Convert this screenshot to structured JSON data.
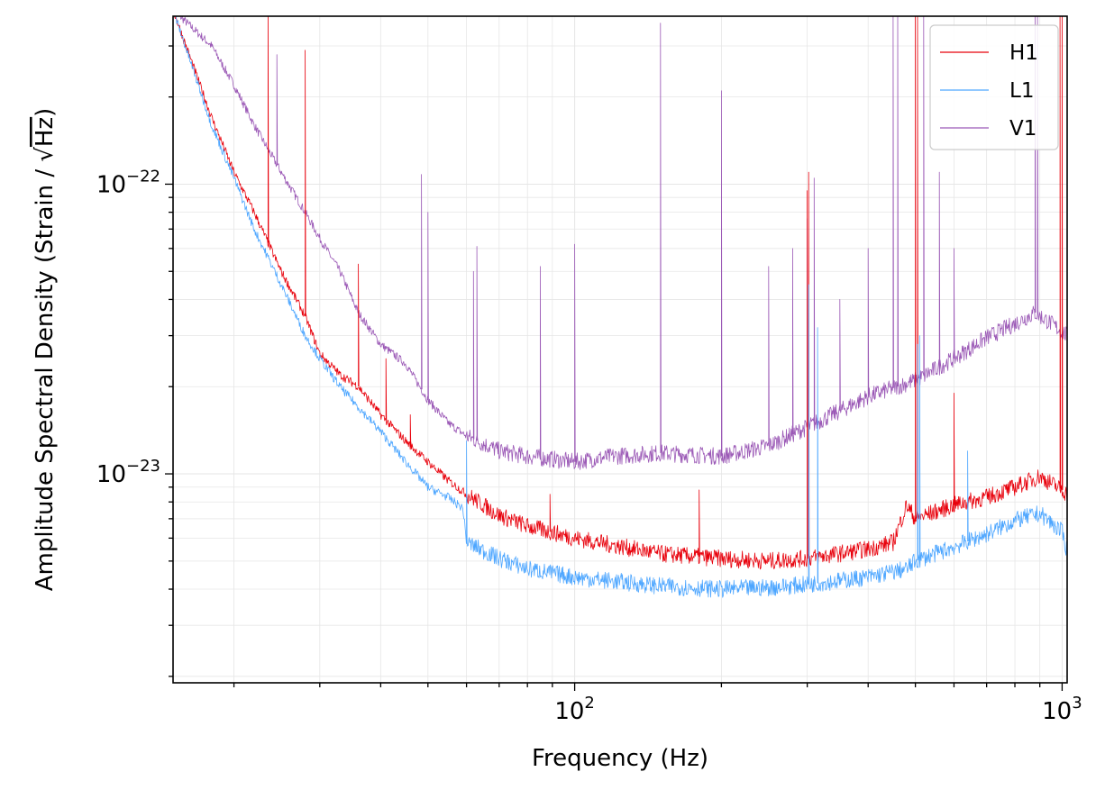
{
  "chart_data": {
    "type": "line",
    "title": "",
    "xlabel": "Frequency (Hz)",
    "ylabel": "Amplitude Spectral Density (Strain / √Hz)",
    "ylabel_parts": {
      "before": "Amplitude Spectral Density (Strain / ",
      "sqrt": "√",
      "radicand": "Hz",
      "after": ")"
    },
    "xscale": "log",
    "yscale": "log",
    "xlim": [
      15,
      1024
    ],
    "ylim": [
      1.9e-24,
      3.8e-22
    ],
    "grid": true,
    "legend": "top-right",
    "x_ticks": [
      {
        "value": 100,
        "base": "10",
        "exp": "2"
      },
      {
        "value": 1000,
        "base": "10",
        "exp": "3"
      }
    ],
    "y_ticks": [
      {
        "value": 1e-23,
        "base": "10",
        "exp": "−23"
      },
      {
        "value": 1e-22,
        "base": "10",
        "exp": "−22"
      }
    ],
    "series": [
      {
        "name": "H1",
        "color": "#e8000b",
        "x": [
          15,
          18,
          20,
          22,
          25,
          28,
          30,
          33,
          36,
          40,
          45,
          50,
          55,
          60,
          70,
          80,
          100,
          150,
          200,
          250,
          300,
          400,
          450,
          480,
          500,
          600,
          700,
          800,
          900,
          1000,
          1024
        ],
        "y": [
          4e-22,
          1.7e-22,
          1.1e-22,
          8e-23,
          5e-23,
          3.5e-23,
          2.6e-23,
          2.2e-23,
          2e-23,
          1.6e-23,
          1.3e-23,
          1.1e-23,
          9.5e-24,
          8.5e-24,
          7.2e-24,
          6.6e-24,
          6e-24,
          5.3e-24,
          5.1e-24,
          5e-24,
          5.1e-24,
          5.5e-24,
          5.8e-24,
          7.8e-24,
          7e-24,
          7.8e-24,
          8.3e-24,
          9e-24,
          9.8e-24,
          8.8e-24,
          8.5e-24
        ],
        "spikes": [
          {
            "x": 23.5,
            "y": 4e-22
          },
          {
            "x": 28,
            "y": 2.9e-22
          },
          {
            "x": 36,
            "y": 5.3e-23
          },
          {
            "x": 41,
            "y": 2.5e-23
          },
          {
            "x": 46,
            "y": 1.6e-23
          },
          {
            "x": 89,
            "y": 8.5e-24
          },
          {
            "x": 180,
            "y": 8.8e-24
          },
          {
            "x": 300,
            "y": 9.5e-23
          },
          {
            "x": 302,
            "y": 1.1e-22
          },
          {
            "x": 500,
            "y": 4e-22
          },
          {
            "x": 505,
            "y": 4e-22
          },
          {
            "x": 600,
            "y": 1.9e-23
          },
          {
            "x": 990,
            "y": 4e-22
          },
          {
            "x": 1000,
            "y": 4e-22
          }
        ]
      },
      {
        "name": "L1",
        "color": "#4da6ff",
        "x": [
          15,
          18,
          20,
          22,
          25,
          28,
          30,
          33,
          36,
          40,
          45,
          50,
          55,
          59,
          60,
          70,
          80,
          100,
          150,
          200,
          250,
          300,
          400,
          480,
          500,
          600,
          700,
          800,
          900,
          1000,
          1024
        ],
        "y": [
          4e-22,
          1.6e-22,
          1.05e-22,
          7e-23,
          4.5e-23,
          3e-23,
          2.5e-23,
          2e-23,
          1.7e-23,
          1.4e-23,
          1.1e-23,
          9e-24,
          8.3e-24,
          7.6e-24,
          5.8e-24,
          5.1e-24,
          4.7e-24,
          4.4e-24,
          4.1e-24,
          4e-24,
          4.05e-24,
          4.15e-24,
          4.4e-24,
          4.7e-24,
          5e-24,
          5.6e-24,
          6.2e-24,
          6.9e-24,
          7.3e-24,
          6.3e-24,
          5.4e-24
        ],
        "spikes": [
          {
            "x": 60,
            "y": 1.3e-23
          },
          {
            "x": 302,
            "y": 4.5e-23
          },
          {
            "x": 315,
            "y": 3.2e-23
          },
          {
            "x": 505,
            "y": 2.8e-23
          },
          {
            "x": 510,
            "y": 3e-23
          },
          {
            "x": 640,
            "y": 1.2e-23
          }
        ]
      },
      {
        "name": "V1",
        "color": "#9b59b6",
        "x": [
          15,
          18,
          20,
          22,
          25,
          28,
          30,
          33,
          36,
          40,
          45,
          50,
          55,
          60,
          70,
          80,
          100,
          120,
          150,
          200,
          250,
          300,
          350,
          400,
          500,
          600,
          700,
          800,
          880,
          950,
          1024
        ],
        "y": [
          4e-22,
          3e-22,
          2.2e-22,
          1.6e-22,
          1.1e-22,
          8e-23,
          6.5e-23,
          5e-23,
          3.6e-23,
          2.8e-23,
          2.4e-23,
          1.8e-23,
          1.5e-23,
          1.35e-23,
          1.2e-23,
          1.15e-23,
          1.1e-23,
          1.15e-23,
          1.18e-23,
          1.15e-23,
          1.25e-23,
          1.45e-23,
          1.65e-23,
          1.85e-23,
          2.1e-23,
          2.5e-23,
          2.95e-23,
          3.3e-23,
          3.6e-23,
          3.3e-23,
          3e-23
        ],
        "spikes": [
          {
            "x": 24.5,
            "y": 2.8e-22
          },
          {
            "x": 48.5,
            "y": 1.08e-22
          },
          {
            "x": 50,
            "y": 8e-23
          },
          {
            "x": 62,
            "y": 5e-23
          },
          {
            "x": 63,
            "y": 6.1e-23
          },
          {
            "x": 85,
            "y": 5.2e-23
          },
          {
            "x": 100,
            "y": 6.2e-23
          },
          {
            "x": 150,
            "y": 3.6e-22
          },
          {
            "x": 200,
            "y": 2.1e-22
          },
          {
            "x": 250,
            "y": 5.2e-23
          },
          {
            "x": 280,
            "y": 6e-23
          },
          {
            "x": 300,
            "y": 7.6e-23
          },
          {
            "x": 310,
            "y": 1.05e-22
          },
          {
            "x": 350,
            "y": 4e-23
          },
          {
            "x": 400,
            "y": 6e-23
          },
          {
            "x": 450,
            "y": 4e-22
          },
          {
            "x": 460,
            "y": 4e-22
          },
          {
            "x": 520,
            "y": 4e-22
          },
          {
            "x": 560,
            "y": 1.1e-22
          },
          {
            "x": 600,
            "y": 6e-23
          },
          {
            "x": 880,
            "y": 4e-22
          },
          {
            "x": 890,
            "y": 4e-22
          }
        ]
      }
    ]
  }
}
